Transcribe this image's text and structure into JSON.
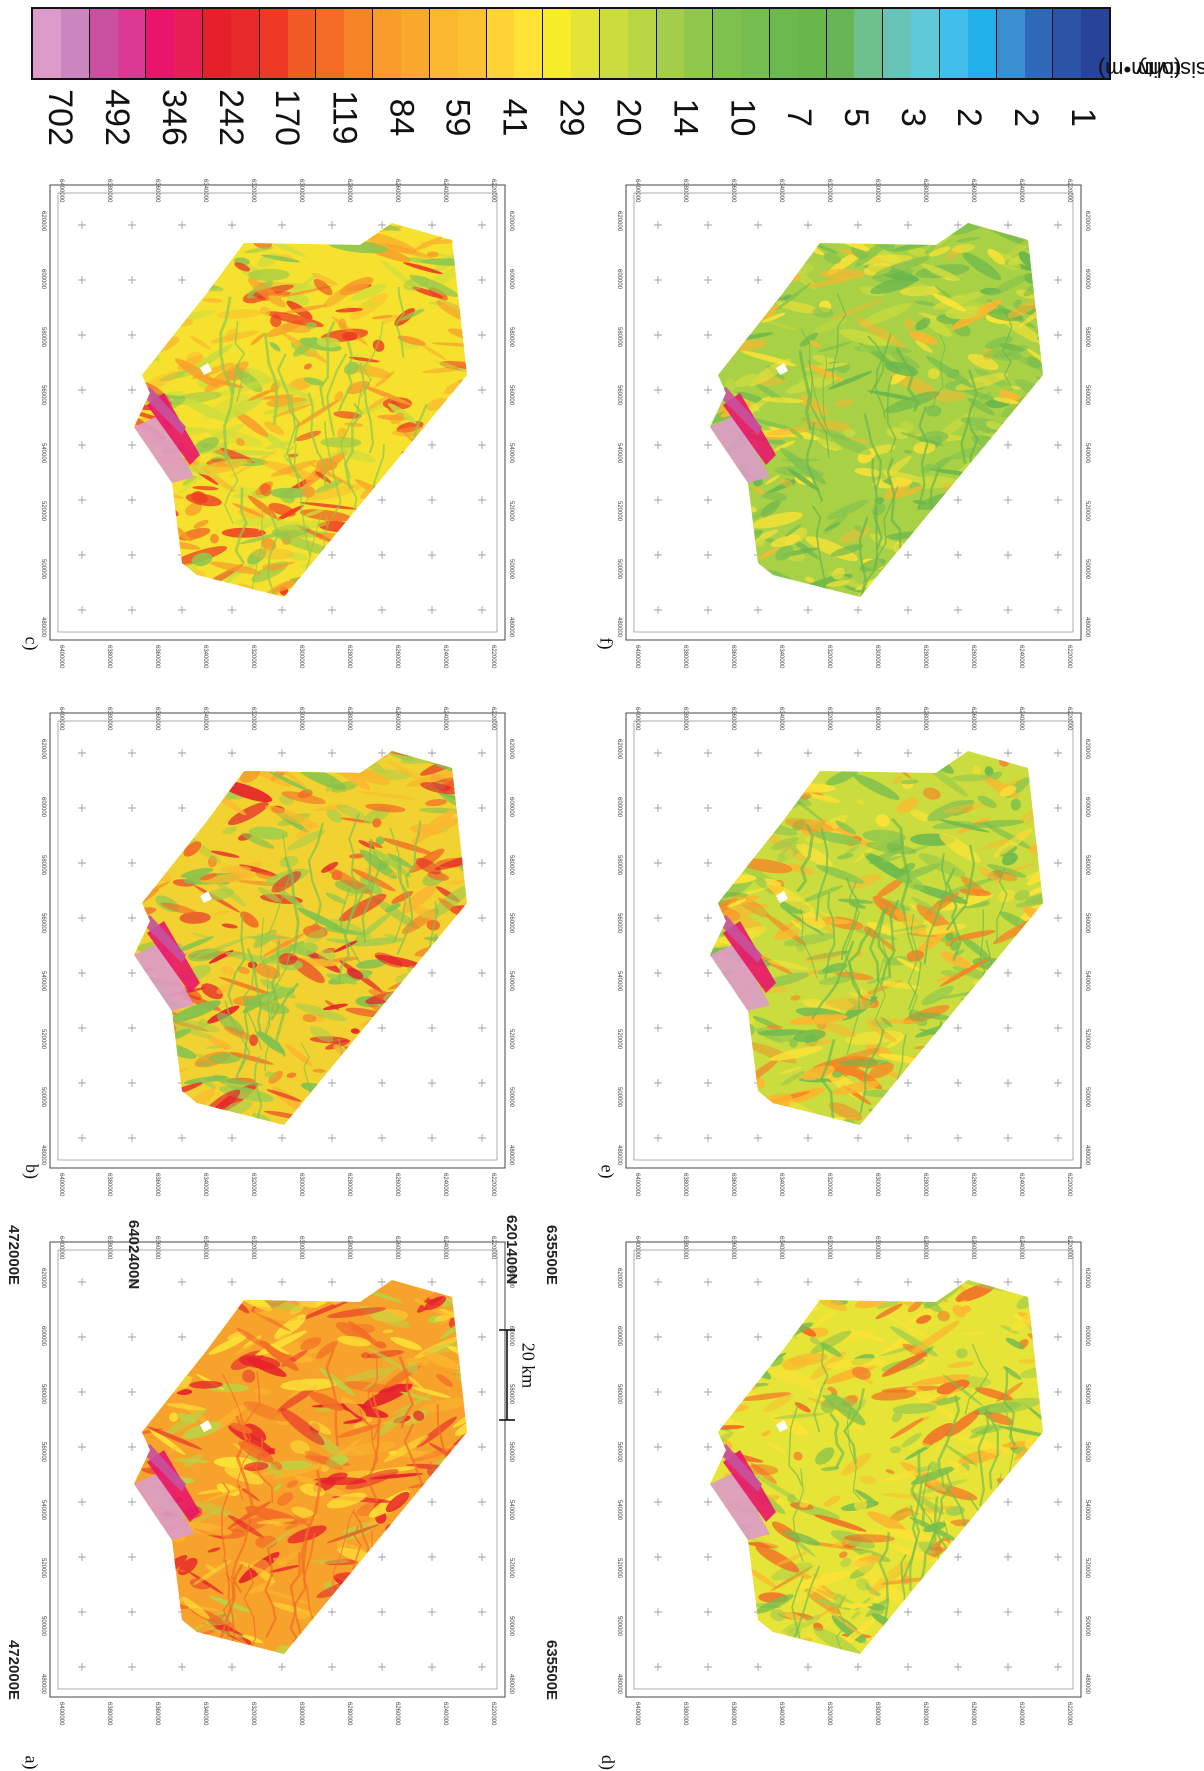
{
  "colorbar": {
    "title_line1": "Resistivity",
    "title_line2": "(ohm•m)",
    "labels": [
      "702",
      "492",
      "346",
      "242",
      "170",
      "119",
      "84",
      "59",
      "41",
      "29",
      "20",
      "14",
      "10",
      "7",
      "5",
      "3",
      "2",
      "2",
      "1"
    ],
    "colors": [
      [
        "#dc9bc9",
        "#cc86bf"
      ],
      [
        "#c8509f",
        "#da3a93"
      ],
      [
        "#e8156a",
        "#e71f56"
      ],
      [
        "#e5202b",
        "#e82a2a"
      ],
      [
        "#ee3a24",
        "#f15b26"
      ],
      [
        "#f26c26",
        "#f58426"
      ],
      [
        "#f79b2a",
        "#f9a82d"
      ],
      [
        "#fbb72f",
        "#fcc132"
      ],
      [
        "#fdd337",
        "#fde336"
      ],
      [
        "#f6ec2a",
        "#e2e43a"
      ],
      [
        "#cbdc3f",
        "#b8d544"
      ],
      [
        "#a3cd4b",
        "#90c74d"
      ],
      [
        "#7fc14f",
        "#76bd4f"
      ],
      [
        "#6cb94f",
        "#69b64d"
      ],
      [
        "#67b556",
        "#6ec08c"
      ],
      [
        "#67c3b7",
        "#5ec8d9"
      ],
      [
        "#41bfea",
        "#22b0ea"
      ],
      [
        "#3a8fd1",
        "#2f6ab8"
      ],
      [
        "#2b53a6",
        "#28449a"
      ]
    ]
  },
  "panels": [
    {
      "id": "a",
      "label": "a)",
      "theme": "orange"
    },
    {
      "id": "b",
      "label": "b)",
      "theme": "orange-green"
    },
    {
      "id": "c",
      "label": "c)",
      "theme": "yellow"
    },
    {
      "id": "d",
      "label": "d)",
      "theme": "yellow-green"
    },
    {
      "id": "e",
      "label": "e)",
      "theme": "green-yellow"
    },
    {
      "id": "f",
      "label": "f)",
      "theme": "green"
    }
  ],
  "panel_a": {
    "corner_nw": "6402400N",
    "corner_ne": "6201400N",
    "corner_sw": "472000E",
    "corner_se": "635500E",
    "corner_sw_n": "6402400N",
    "corner_se_n": "6201400N",
    "corner_nw_e": "472000E",
    "corner_ne_e": "635500E",
    "scale_label": "20 km"
  },
  "grid": {
    "northing_ticks": [
      "6400000",
      "6380000",
      "6360000",
      "6340000",
      "6320000",
      "6300000",
      "6280000",
      "6260000",
      "6240000",
      "6220000"
    ],
    "easting_ticks": [
      "480000",
      "500000",
      "520000",
      "540000",
      "560000",
      "580000",
      "600000",
      "620000"
    ],
    "lat_ticks": [
      "57°45'",
      "57°30'",
      "57°15'",
      "57°00'",
      "56°45'",
      "56°30'",
      "56°15'",
      "56°00'"
    ],
    "lon_ticks": [
      "-123°00'",
      "-122°30'",
      "-122°00'",
      "-121°30'",
      "-121°00'"
    ]
  },
  "themes": {
    "orange": {
      "base": "#f7a22b",
      "c1": "#fbb72f",
      "c2": "#f26c26",
      "c3": "#fde336",
      "c4": "#b8d544",
      "c5": "#e5202b"
    },
    "orange-green": {
      "base": "#f2d230",
      "c1": "#fbb72f",
      "c2": "#a3cd4b",
      "c3": "#f26c26",
      "c4": "#7fc14f",
      "c5": "#e5202b"
    },
    "yellow": {
      "base": "#f6e22e",
      "c1": "#fbb72f",
      "c2": "#cbdc3f",
      "c3": "#f79b2a",
      "c4": "#90c74d",
      "c5": "#ee3a24"
    },
    "yellow-green": {
      "base": "#e6e437",
      "c1": "#fde336",
      "c2": "#a3cd4b",
      "c3": "#fbb72f",
      "c4": "#76bd4f",
      "c5": "#f26c26"
    },
    "green-yellow": {
      "base": "#cbdc3f",
      "c1": "#fde336",
      "c2": "#90c74d",
      "c3": "#fbb72f",
      "c4": "#6cb94f",
      "c5": "#f58426"
    },
    "green": {
      "base": "#a9d146",
      "c1": "#cbdc3f",
      "c2": "#7fc14f",
      "c3": "#fde336",
      "c4": "#69b64d",
      "c5": "#fbb72f"
    }
  }
}
